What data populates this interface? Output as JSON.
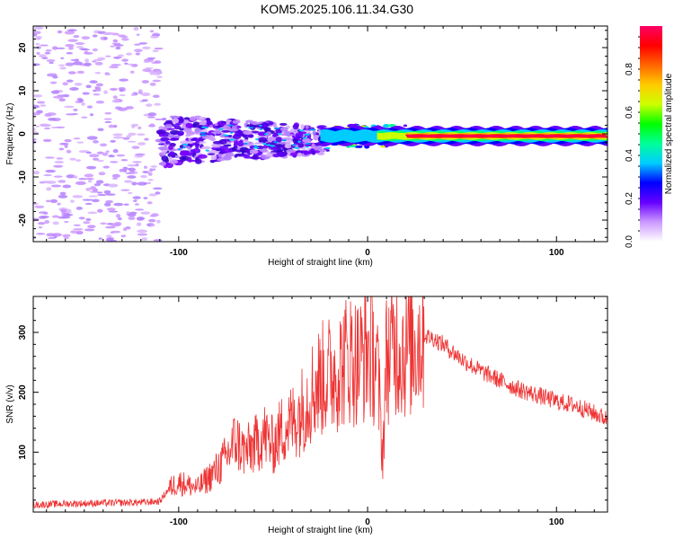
{
  "title": "KOM5.2025.106.11.34.G30",
  "chart_data": [
    {
      "type": "heatmap",
      "xlabel": "Height of straight line (km)",
      "ylabel": "Frequency (Hz)",
      "xlim": [
        -177,
        127
      ],
      "ylim": [
        -25,
        25
      ],
      "xticks": [
        -100,
        0,
        100
      ],
      "yticks": [
        -20,
        -10,
        0,
        10,
        20
      ],
      "colorbar": {
        "label": "Normalized spectral amplitude",
        "range": [
          0,
          1
        ],
        "ticks": [
          "0.0",
          "0.2",
          "0.4",
          "0.6",
          "0.8"
        ],
        "colors": [
          "#ffffff",
          "#cc99ff",
          "#6600ff",
          "#0000ff",
          "#00ccff",
          "#00ff99",
          "#00ff00",
          "#ccff00",
          "#ffcc00",
          "#ff6600",
          "#ff0000",
          "#ff0066"
        ]
      },
      "regions": [
        {
          "x_range": [
            -177,
            -110
          ],
          "freq_range": [
            -25,
            25
          ],
          "amplitude": 0.1,
          "description_level": "scattered weak patches"
        },
        {
          "x_range": [
            -110,
            -20
          ],
          "freq_range": [
            -12,
            8
          ],
          "amplitude": 0.2,
          "description_level": "dense patches"
        },
        {
          "x_range": [
            -20,
            20
          ],
          "freq_range": [
            -3,
            2
          ],
          "amplitude": 0.5,
          "description_level": "mixed"
        },
        {
          "x_range": [
            20,
            127
          ],
          "freq_range": [
            -1,
            1
          ],
          "amplitude": 0.95,
          "description_level": "strong line at 0 Hz"
        }
      ]
    },
    {
      "type": "line",
      "xlabel": "Height of straight line (km)",
      "ylabel": "SNR (v/v)",
      "xlim": [
        -177,
        127
      ],
      "ylim": [
        0,
        360
      ],
      "xticks": [
        -100,
        0,
        100
      ],
      "yticks": [
        100,
        200,
        300
      ],
      "color": "#ee3333",
      "series": [
        {
          "x": [
            -177,
            -160,
            -140,
            -120,
            -110,
            -105,
            -100,
            -95,
            -90,
            -85,
            -80,
            -75,
            -70,
            -65,
            -60,
            -55,
            -50,
            -45,
            -40,
            -35,
            -30,
            -25,
            -20,
            -15,
            -10,
            -5,
            0,
            5,
            8,
            10,
            15,
            20,
            25,
            30,
            35,
            40,
            50,
            60,
            70,
            80,
            90,
            100,
            110,
            120,
            127
          ],
          "y": [
            12,
            14,
            15,
            16,
            18,
            40,
            50,
            45,
            40,
            55,
            70,
            90,
            120,
            100,
            110,
            130,
            110,
            140,
            150,
            170,
            200,
            220,
            230,
            240,
            260,
            250,
            270,
            250,
            90,
            260,
            280,
            270,
            285,
            295,
            290,
            280,
            255,
            235,
            220,
            205,
            195,
            185,
            178,
            165,
            155
          ]
        }
      ]
    }
  ]
}
